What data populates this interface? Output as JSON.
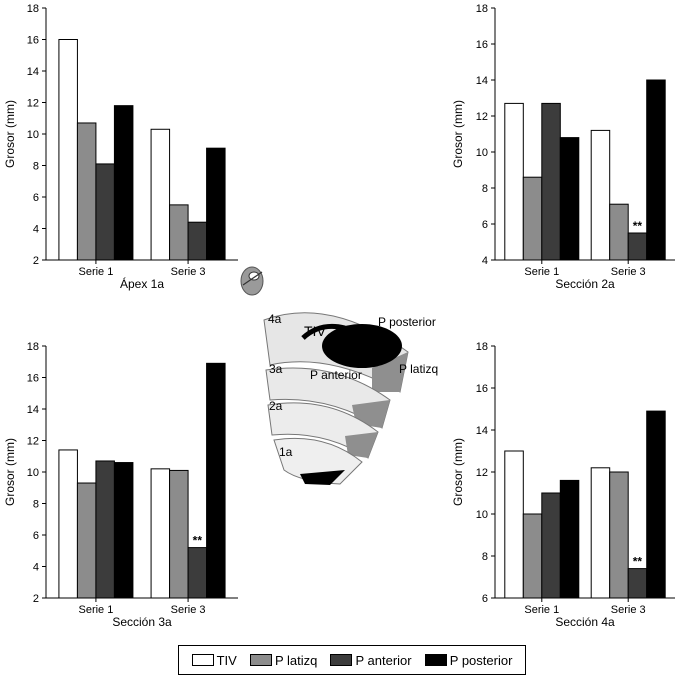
{
  "colors": {
    "TIV": "#ffffff",
    "P latizq": "#8c8c8c",
    "P anterior": "#3c3c3c",
    "P posterior": "#000000"
  },
  "legend": {
    "items": [
      "TIV",
      "P latizq",
      "P anterior",
      "P posterior"
    ]
  },
  "diagram": {
    "labels": [
      "4a",
      "TIV",
      "P posterior",
      "3a",
      "P anterior",
      "P latizq",
      "2a",
      "1a"
    ]
  },
  "chart_data": [
    {
      "type": "bar",
      "title": "Ápex 1a",
      "ylabel": "Grosor (mm)",
      "ylim": [
        2,
        18
      ],
      "yticks": [
        2,
        4,
        6,
        8,
        10,
        12,
        14,
        16,
        18
      ],
      "categories": [
        "Serie 1",
        "Serie 3"
      ],
      "series": [
        {
          "name": "TIV",
          "values": [
            16.0,
            10.3
          ]
        },
        {
          "name": "P latizq",
          "values": [
            10.7,
            5.5
          ]
        },
        {
          "name": "P anterior",
          "values": [
            8.1,
            4.4
          ]
        },
        {
          "name": "P posterior",
          "values": [
            11.8,
            9.1
          ]
        }
      ],
      "annotations": []
    },
    {
      "type": "bar",
      "title": "Sección 2a",
      "ylabel": "Grosor (mm)",
      "ylim": [
        4,
        18
      ],
      "yticks": [
        4,
        6,
        8,
        10,
        12,
        14,
        16,
        18
      ],
      "categories": [
        "Serie 1",
        "Serie 3"
      ],
      "series": [
        {
          "name": "TIV",
          "values": [
            12.7,
            11.2
          ]
        },
        {
          "name": "P latizq",
          "values": [
            8.6,
            7.1
          ]
        },
        {
          "name": "P anterior",
          "values": [
            12.7,
            5.5
          ]
        },
        {
          "name": "P posterior",
          "values": [
            10.8,
            14.0
          ]
        }
      ],
      "annotations": [
        {
          "text": "**",
          "category": 1,
          "series": 2
        }
      ]
    },
    {
      "type": "bar",
      "title": "Sección 3a",
      "ylabel": "Grosor (mm)",
      "ylim": [
        2,
        18
      ],
      "yticks": [
        2,
        4,
        6,
        8,
        10,
        12,
        14,
        16,
        18
      ],
      "categories": [
        "Serie 1",
        "Serie 3"
      ],
      "series": [
        {
          "name": "TIV",
          "values": [
            11.4,
            10.2
          ]
        },
        {
          "name": "P latizq",
          "values": [
            9.3,
            10.1
          ]
        },
        {
          "name": "P anterior",
          "values": [
            10.7,
            5.2
          ]
        },
        {
          "name": "P posterior",
          "values": [
            10.6,
            16.9
          ]
        }
      ],
      "annotations": [
        {
          "text": "**",
          "category": 1,
          "series": 2
        }
      ]
    },
    {
      "type": "bar",
      "title": "Sección 4a",
      "ylabel": "Grosor (mm)",
      "ylim": [
        6,
        18
      ],
      "yticks": [
        6,
        8,
        10,
        12,
        14,
        16,
        18
      ],
      "categories": [
        "Serie 1",
        "Serie 3"
      ],
      "series": [
        {
          "name": "TIV",
          "values": [
            13.0,
            12.2
          ]
        },
        {
          "name": "P latizq",
          "values": [
            10.0,
            12.0
          ]
        },
        {
          "name": "P anterior",
          "values": [
            11.0,
            7.4
          ]
        },
        {
          "name": "P posterior",
          "values": [
            11.6,
            14.9
          ]
        }
      ],
      "annotations": [
        {
          "text": "**",
          "category": 1,
          "series": 2
        }
      ]
    }
  ]
}
